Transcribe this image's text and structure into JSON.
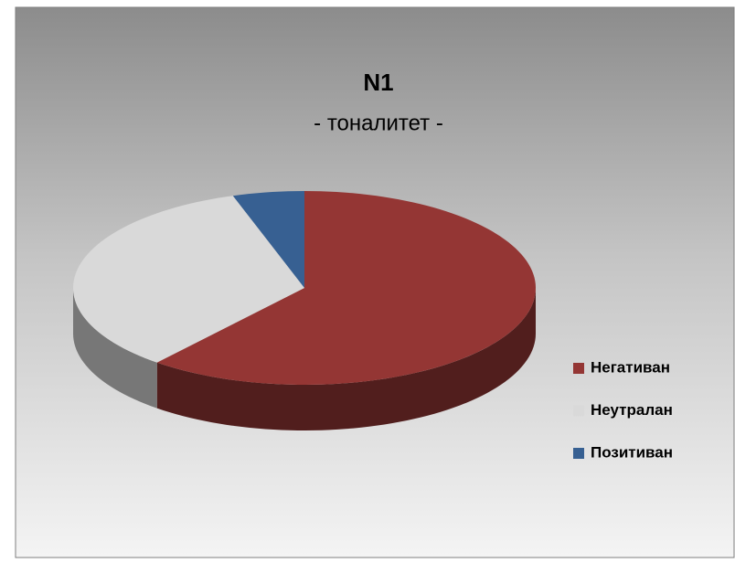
{
  "chart_data": {
    "type": "pie",
    "title": "N1",
    "subtitle": "- тоналитет -",
    "categories": [
      "Негативан",
      "Неутралан",
      "Позитиван"
    ],
    "values": [
      61,
      34,
      5
    ],
    "colors": [
      "#943634",
      "#d9d9d9",
      "#376092"
    ],
    "legend": "right"
  }
}
